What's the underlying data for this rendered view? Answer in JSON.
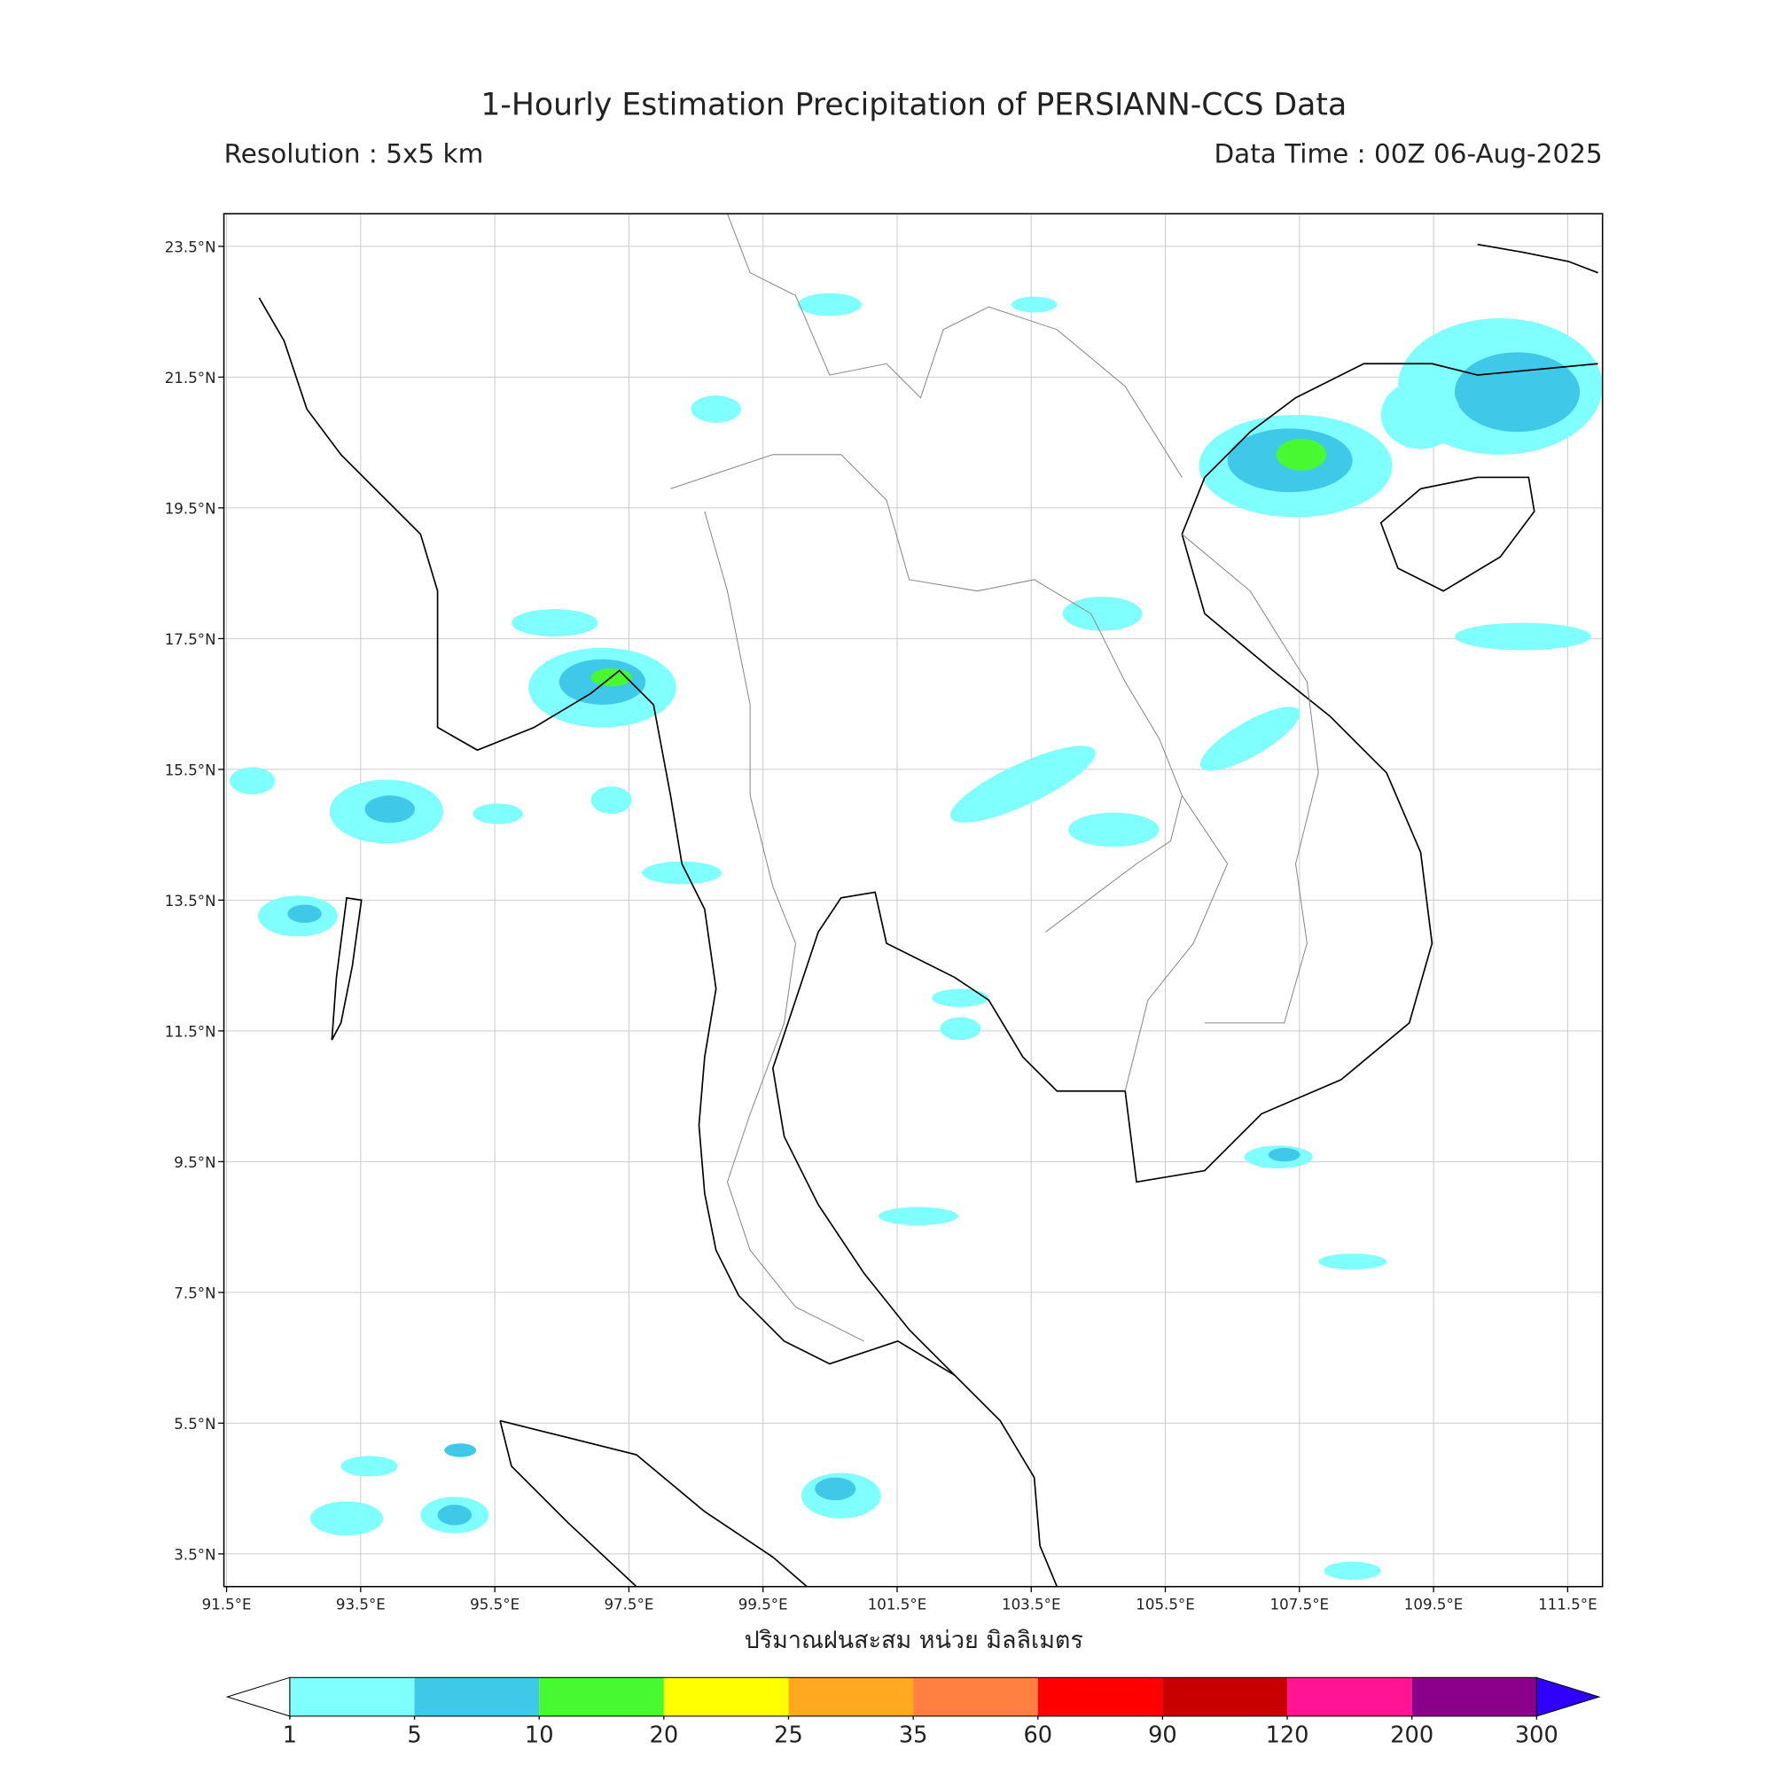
{
  "header": {
    "title": "1-Hourly Estimation Precipitation of PERSIANN-CCS Data",
    "resolution": "Resolution : 5x5 km",
    "data_time": "Data Time : 00Z 06-Aug-2025"
  },
  "map": {
    "xlim": [
      91.46,
      112.02
    ],
    "ylim": [
      3.0,
      24.0
    ],
    "xticks": [
      {
        "value": 91.5,
        "label": "91.5°E"
      },
      {
        "value": 93.5,
        "label": "93.5°E"
      },
      {
        "value": 95.5,
        "label": "95.5°E"
      },
      {
        "value": 97.5,
        "label": "97.5°E"
      },
      {
        "value": 99.5,
        "label": "99.5°E"
      },
      {
        "value": 101.5,
        "label": "101.5°E"
      },
      {
        "value": 103.5,
        "label": "103.5°E"
      },
      {
        "value": 105.5,
        "label": "105.5°E"
      },
      {
        "value": 107.5,
        "label": "107.5°E"
      },
      {
        "value": 109.5,
        "label": "109.5°E"
      },
      {
        "value": 111.5,
        "label": "111.5°E"
      }
    ],
    "yticks": [
      {
        "value": 23.5,
        "label": "23.5°N"
      },
      {
        "value": 21.5,
        "label": "21.5°N"
      },
      {
        "value": 19.5,
        "label": "19.5°N"
      },
      {
        "value": 17.5,
        "label": "17.5°N"
      },
      {
        "value": 15.5,
        "label": "15.5°N"
      },
      {
        "value": 13.5,
        "label": "13.5°N"
      },
      {
        "value": 11.5,
        "label": "11.5°N"
      },
      {
        "value": 9.5,
        "label": "9.5°N"
      },
      {
        "value": 7.5,
        "label": "7.5°N"
      },
      {
        "value": 5.5,
        "label": "5.5°N"
      },
      {
        "value": 3.5,
        "label": "3.5°N"
      }
    ],
    "grid": true
  },
  "colorbar": {
    "label": "ปริมาณฝนสะสม หน่วย มิลลิเมตร",
    "levels": [
      1,
      5,
      10,
      20,
      25,
      35,
      60,
      90,
      120,
      200,
      300
    ],
    "colors": [
      "#80ffff",
      "#40c8e8",
      "#48f830",
      "#ffff00",
      "#ffa820",
      "#ff8040",
      "#ff0000",
      "#c80000",
      "#ff1493",
      "#8b008b"
    ],
    "under_color": "#ffffff",
    "over_color": "#3000ff"
  }
}
